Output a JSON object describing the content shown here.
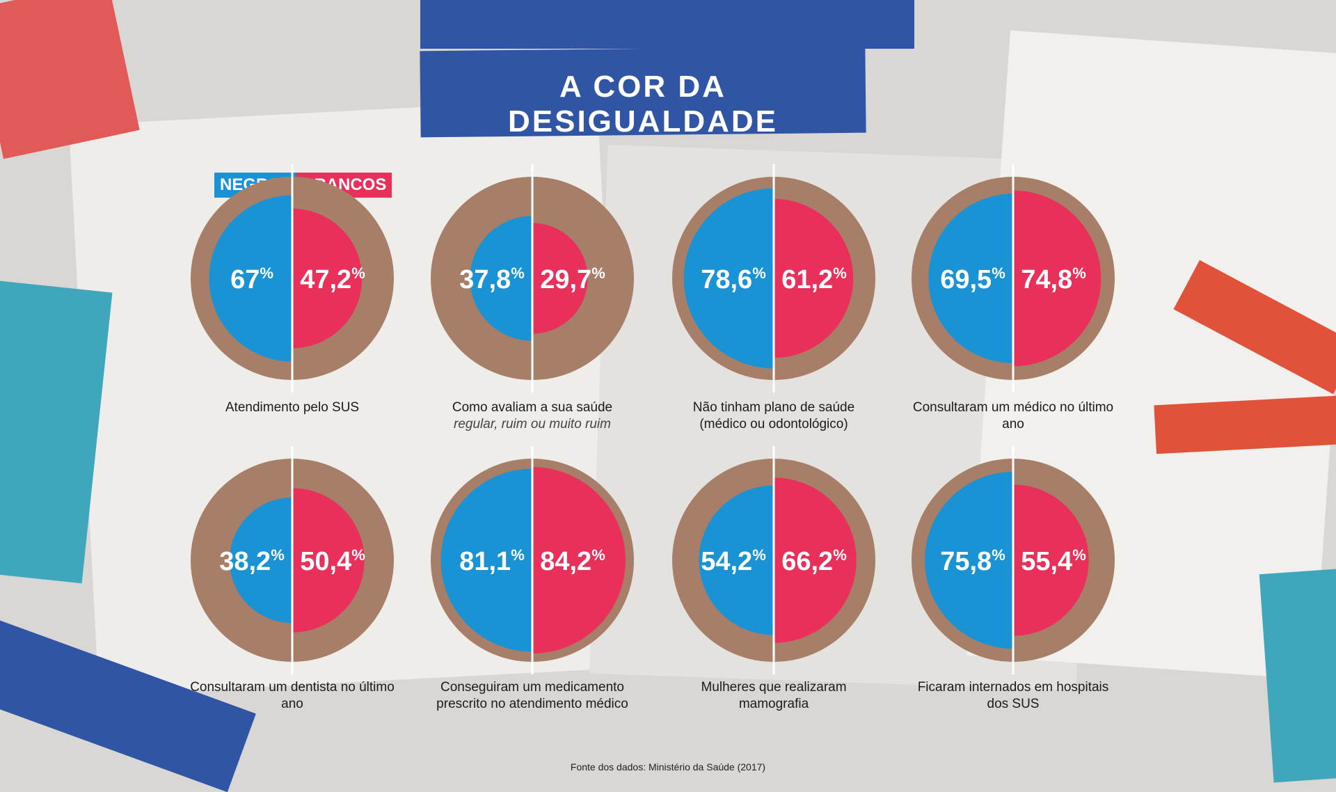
{
  "title": "A COR DA DESIGUALDADE",
  "source": "Fonte dos dados: Ministério da Saúde (2017)",
  "colors": {
    "negros": "#1a93d5",
    "brancos": "#e8305a",
    "cardboard": "#a77f69",
    "banner": "#2f55a4"
  },
  "chart_data": {
    "type": "pie",
    "legend": [
      {
        "label": "NEGROS",
        "color": "#1a93d5"
      },
      {
        "label": "BRANCOS",
        "color": "#e8305a"
      }
    ],
    "unit": "%",
    "panels": [
      {
        "caption": "Atendimento pelo SUS",
        "subcaption": "",
        "negros": 67,
        "brancos": 47.2,
        "negros_label": "67",
        "brancos_label": "47,2"
      },
      {
        "caption": "Como avaliam a sua saúde",
        "subcaption": "regular, ruim ou muito ruim",
        "negros": 37.8,
        "brancos": 29.7,
        "negros_label": "37,8",
        "brancos_label": "29,7"
      },
      {
        "caption": "Não tinham plano de saúde (médico ou odontológico)",
        "subcaption": "",
        "negros": 78.6,
        "brancos": 61.2,
        "negros_label": "78,6",
        "brancos_label": "61,2"
      },
      {
        "caption": "Consultaram um médico no último ano",
        "subcaption": "",
        "negros": 69.5,
        "brancos": 74.8,
        "negros_label": "69,5",
        "brancos_label": "74,8"
      },
      {
        "caption": "Consultaram um dentista no último ano",
        "subcaption": "",
        "negros": 38.2,
        "brancos": 50.4,
        "negros_label": "38,2",
        "brancos_label": "50,4"
      },
      {
        "caption": "Conseguiram um medicamento prescrito no atendimento médico",
        "subcaption": "",
        "negros": 81.1,
        "brancos": 84.2,
        "negros_label": "81,1",
        "brancos_label": "84,2"
      },
      {
        "caption": "Mulheres que realizaram mamografia",
        "subcaption": "",
        "negros": 54.2,
        "brancos": 66.2,
        "negros_label": "54,2",
        "brancos_label": "66,2"
      },
      {
        "caption": "Ficaram internados em hospitais dos SUS",
        "subcaption": "",
        "negros": 75.8,
        "brancos": 55.4,
        "negros_label": "75,8",
        "brancos_label": "55,4"
      }
    ]
  }
}
